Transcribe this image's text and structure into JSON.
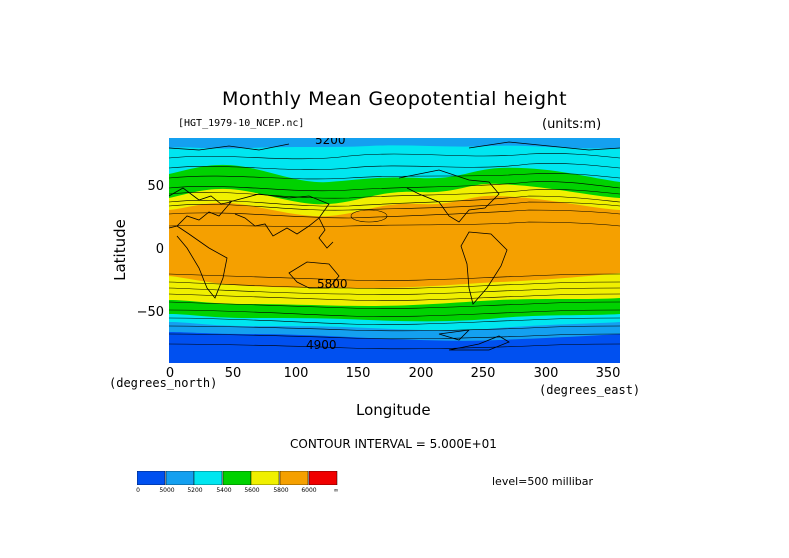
{
  "title": "Monthly Mean Geopotential height",
  "filename": "[HGT_1979-10_NCEP.nc]",
  "units": "(units:m)",
  "ylabel": "Latitude",
  "xlabel": "Longitude",
  "y_unit": "(degrees_north)",
  "x_unit": "(degrees_east)",
  "y_ticks": [
    "50",
    "0",
    "−50"
  ],
  "x_ticks": [
    "0",
    "50",
    "100",
    "150",
    "200",
    "250",
    "300",
    "350"
  ],
  "contour_interval": "CONTOUR INTERVAL = 5.000E+01",
  "level": "level=500 millibar",
  "contour_labels": [
    "5200",
    "5800",
    "4900"
  ],
  "colorbar": {
    "ticks": [
      "0",
      "5000",
      "5200",
      "5400",
      "5600",
      "5800",
      "6000",
      "∞"
    ],
    "colors": [
      "#0050f0",
      "#14a0f0",
      "#00e6f0",
      "#00d200",
      "#f0f000",
      "#f5a000",
      "#f00000"
    ]
  },
  "bands": {
    "colors": {
      "blue": "#0050f0",
      "skyblue": "#14a0f0",
      "cyan": "#00e6f0",
      "green": "#00d200",
      "yellow": "#f0f000",
      "orange": "#f5a000"
    }
  }
}
